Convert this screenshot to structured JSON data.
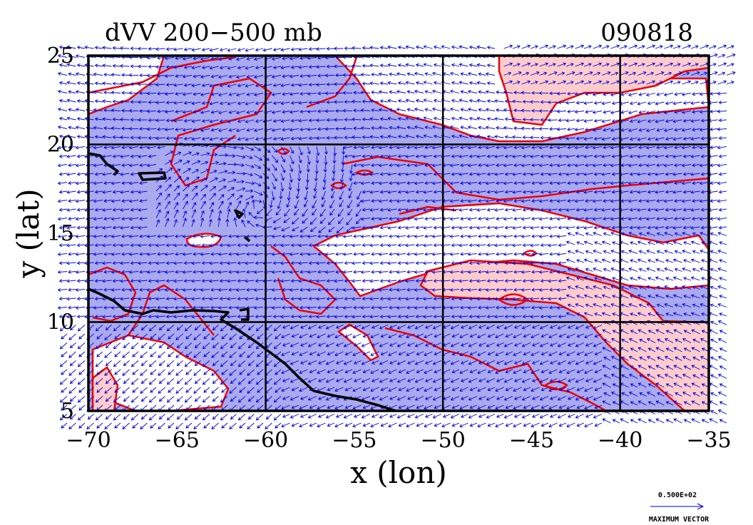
{
  "title": "dVV 200−500 mb",
  "date": "090818",
  "x_axis": {
    "label": "x (lon)",
    "ticks": [
      {
        "value": -70,
        "label": "−70"
      },
      {
        "value": -65,
        "label": "−65"
      },
      {
        "value": -60,
        "label": "−60"
      },
      {
        "value": -55,
        "label": "−55"
      },
      {
        "value": -50,
        "label": "−50"
      },
      {
        "value": -45,
        "label": "−45"
      },
      {
        "value": -40,
        "label": "−40"
      },
      {
        "value": -35,
        "label": "−35"
      }
    ],
    "range": [
      -70,
      -35
    ]
  },
  "y_axis": {
    "label": "y (lat)",
    "ticks": [
      {
        "value": 5,
        "label": "5"
      },
      {
        "value": 10,
        "label": "10"
      },
      {
        "value": 15,
        "label": "15"
      },
      {
        "value": 20,
        "label": "20"
      },
      {
        "value": 25,
        "label": "25"
      }
    ],
    "range": [
      5,
      25
    ]
  },
  "grid_lines": {
    "lon": [
      -60,
      -50,
      -40
    ],
    "lat": [
      10,
      20
    ]
  },
  "legend": {
    "vector_magnitude": "0.500E+02",
    "vector_caption": "MAXIMUM VECTOR"
  },
  "colors": {
    "negative_fill": "#aaaaee",
    "positive_fill": "#ffcccc",
    "contour": "#ee0000",
    "vectors": "#0000dd",
    "coast": "#000000"
  }
}
